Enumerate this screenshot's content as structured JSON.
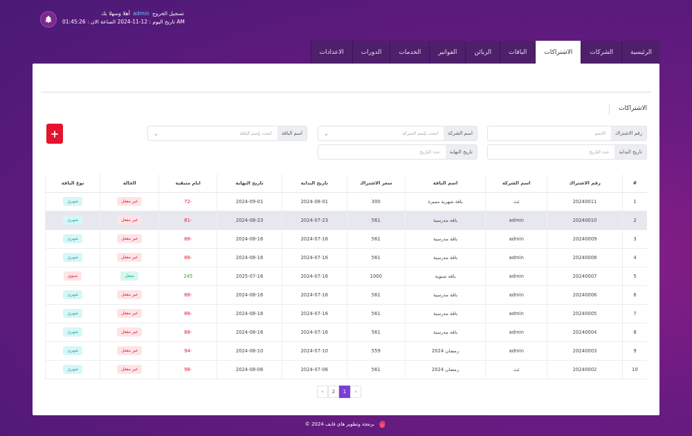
{
  "header": {
    "welcome_prefix": "أهلا وسهلا بك",
    "user": "admin",
    "logout": "تسجيل الخروج",
    "date_line": "تاريخ اليوم : 12-11-2024 الساعة الان : 01:45:26 AM"
  },
  "tabs": [
    "الرئيسية",
    "الشركات",
    "الاشتراكات",
    "الباقات",
    "الزبائن",
    "الفواتير",
    "الخدمات",
    "الدورات",
    "الاعدادات"
  ],
  "active_tab": 2,
  "section_title": "الاشتراكات",
  "filters": {
    "sub_no_label": "رقم الاشتراك",
    "sub_no_placeholder": "الاسم",
    "company_label": "اسم الشركة",
    "company_placeholder": "ابحث بإسم الشركة",
    "package_label": "اسم الباقة",
    "package_placeholder": "ابحث بإسم الباقة",
    "start_label": "تاريخ البداية",
    "start_placeholder": "حدد التاريخ",
    "end_label": "تاريخ النهاية",
    "end_placeholder": "حدد التاريخ"
  },
  "add_label": "+",
  "table": {
    "headers": [
      "#",
      "رقم الاشتراك",
      "اسم الشركة",
      "اسم الباقة",
      "سعر الاشتراك",
      "تاريخ البداية",
      "تاريخ النهاية",
      "ايام متبقية",
      "الحالة",
      "نوع الباقة"
    ],
    "rows": [
      [
        "1",
        "20240011",
        "ثث",
        "باقة شهرية مميزة",
        "300",
        "2024-08-01",
        "2024-09-01",
        "-72",
        "غير مفعل",
        "شهري"
      ],
      [
        "2",
        "20240010",
        "admin",
        "باقة مدرسية",
        "561",
        "2024-07-23",
        "2024-08-23",
        "-81",
        "غير مفعل",
        "شهري"
      ],
      [
        "3",
        "20240009",
        "admin",
        "باقة مدرسية",
        "561",
        "2024-07-16",
        "2024-08-16",
        "-88",
        "غير مفعل",
        "شهري"
      ],
      [
        "4",
        "20240008",
        "admin",
        "باقة مدرسية",
        "561",
        "2024-07-16",
        "2024-08-16",
        "-88",
        "غير مفعل",
        "شهري"
      ],
      [
        "5",
        "20240007",
        "admin",
        "باقة سنوية",
        "1000",
        "2024-07-16",
        "2025-07-16",
        "245",
        "مفعل",
        "سنوي"
      ],
      [
        "6",
        "20240006",
        "admin",
        "باقة مدرسية",
        "561",
        "2024-07-16",
        "2024-08-16",
        "-88",
        "غير مفعل",
        "شهري"
      ],
      [
        "7",
        "20240005",
        "admin",
        "باقة مدرسية",
        "561",
        "2024-07-16",
        "2024-08-16",
        "-88",
        "غير مفعل",
        "شهري"
      ],
      [
        "8",
        "20240004",
        "admin",
        "باقة مدرسية",
        "561",
        "2024-07-16",
        "2024-08-16",
        "-88",
        "غير مفعل",
        "شهري"
      ],
      [
        "9",
        "20240003",
        "admin",
        "رمضان 2024",
        "559",
        "2024-07-10",
        "2024-08-10",
        "-94",
        "غير مفعل",
        "شهري"
      ],
      [
        "10",
        "20240002",
        "ثث",
        "رمضان 2024",
        "561",
        "2024-07-06",
        "2024-08-06",
        "-98",
        "غير مفعل",
        "شهري"
      ]
    ],
    "highlighted_row": 1
  },
  "pagination": {
    "prev": "‹",
    "pages": [
      "2",
      "1"
    ],
    "next": "›",
    "active": "1"
  },
  "footer": "© 2024 برمجة وتطوير هاي فايف",
  "colors": {
    "accent": "#7b3fd6",
    "danger": "#e3142c"
  }
}
